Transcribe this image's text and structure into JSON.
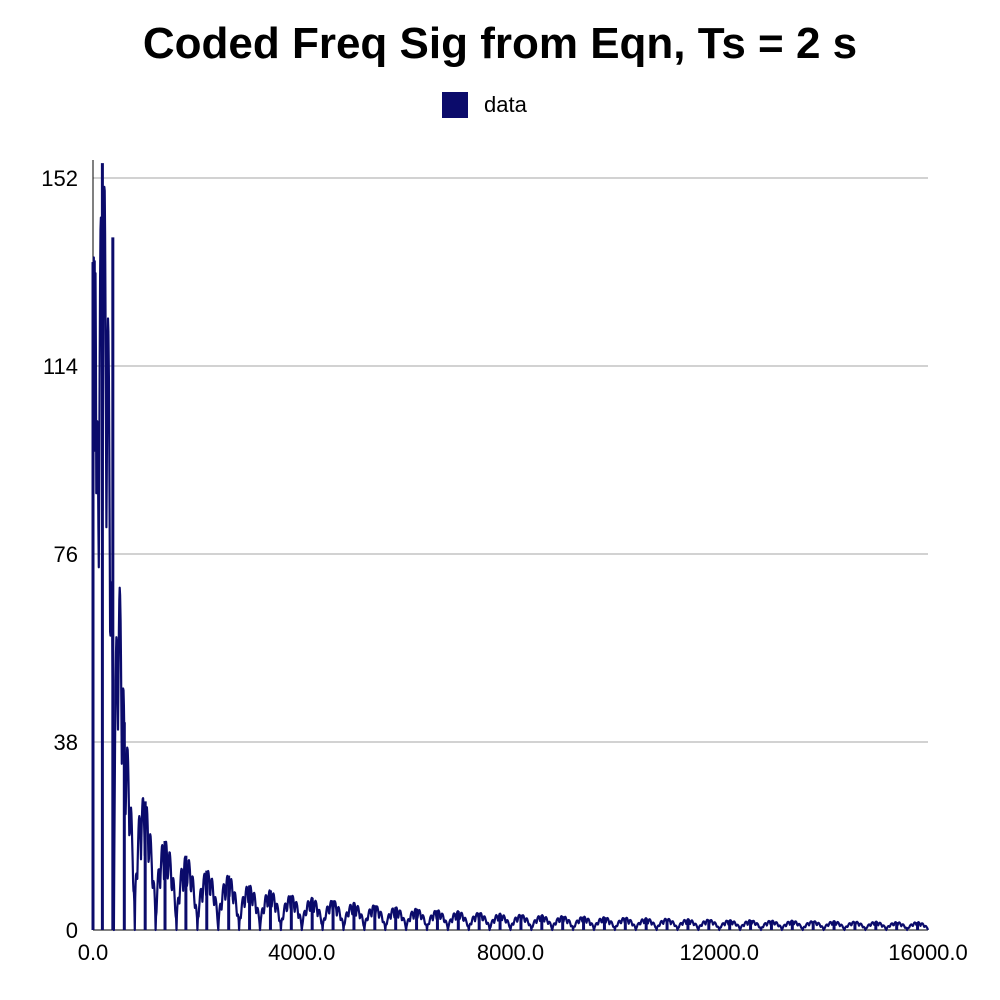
{
  "chart_data": {
    "type": "line",
    "title": "Coded Freq Sig from Eqn, Ts = 2 s",
    "xlabel": "",
    "ylabel": "",
    "xlim": [
      0,
      16000
    ],
    "ylim": [
      0,
      152
    ],
    "x_ticks": [
      "0.0",
      "4000.0",
      "8000.0",
      "12000.0",
      "16000.0"
    ],
    "y_ticks": [
      "0",
      "38",
      "76",
      "114",
      "152"
    ],
    "grid": "horizontal",
    "legend": {
      "position": "top-center",
      "entries": [
        "data"
      ]
    },
    "series_color": "#0b0b6b",
    "series": [
      {
        "name": "data",
        "lobe_spacing": 400,
        "lobe_peaks": [
          [
            0,
            135
          ],
          [
            180,
            155
          ],
          [
            380,
            140
          ],
          [
            600,
            42
          ],
          [
            1000,
            26
          ],
          [
            1380,
            18
          ],
          [
            1780,
            15
          ],
          [
            2180,
            12
          ],
          [
            2600,
            11
          ],
          [
            3000,
            9
          ],
          [
            3400,
            8
          ],
          [
            3800,
            7
          ],
          [
            4200,
            6.5
          ],
          [
            4600,
            6
          ],
          [
            5000,
            5.5
          ],
          [
            5400,
            5
          ],
          [
            5800,
            4.6
          ],
          [
            6200,
            4.3
          ],
          [
            6600,
            4
          ],
          [
            7000,
            3.8
          ],
          [
            7400,
            3.5
          ],
          [
            7800,
            3.3
          ],
          [
            8200,
            3.1
          ],
          [
            8600,
            3
          ],
          [
            9000,
            2.8
          ],
          [
            9400,
            2.7
          ],
          [
            9800,
            2.6
          ],
          [
            10200,
            2.5
          ],
          [
            10600,
            2.4
          ],
          [
            11000,
            2.3
          ],
          [
            11400,
            2.2
          ],
          [
            11800,
            2.1
          ],
          [
            12200,
            2
          ],
          [
            12600,
            2
          ],
          [
            13000,
            1.9
          ],
          [
            13400,
            1.9
          ],
          [
            13800,
            1.8
          ],
          [
            14200,
            1.8
          ],
          [
            14600,
            1.7
          ],
          [
            15000,
            1.7
          ],
          [
            15400,
            1.6
          ],
          [
            15800,
            1.6
          ]
        ]
      }
    ]
  }
}
